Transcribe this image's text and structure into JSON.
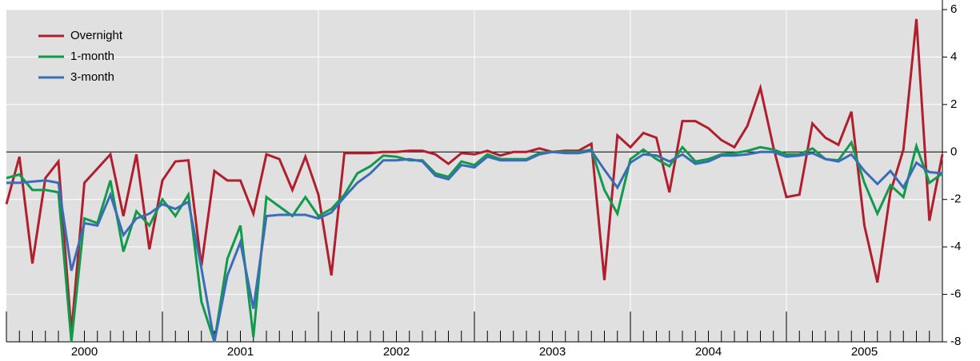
{
  "chart_data": {
    "type": "line",
    "categories": [
      null,
      null,
      null,
      null,
      null,
      null,
      "2000",
      null,
      null,
      null,
      null,
      null,
      null,
      null,
      null,
      null,
      null,
      null,
      "2001",
      null,
      null,
      null,
      null,
      null,
      null,
      null,
      null,
      null,
      null,
      null,
      "2002",
      null,
      null,
      null,
      null,
      null,
      null,
      null,
      null,
      null,
      null,
      null,
      "2003",
      null,
      null,
      null,
      null,
      null,
      null,
      null,
      null,
      null,
      null,
      null,
      "2004",
      null,
      null,
      null,
      null,
      null,
      null,
      null,
      null,
      null,
      null,
      null,
      "2005",
      null,
      null,
      null,
      null,
      null,
      null
    ],
    "series": [
      {
        "name": "Overnight",
        "color": "#b01f2e",
        "values": [
          -2.2,
          -0.2,
          -4.7,
          -1.1,
          -0.4,
          -7.6,
          -1.3,
          -0.7,
          -0.1,
          -2.7,
          -0.1,
          -4.1,
          -1.2,
          -0.4,
          -0.35,
          -4.8,
          -0.8,
          -1.2,
          -1.2,
          -2.6,
          -0.1,
          -0.3,
          -1.6,
          -0.2,
          -1.8,
          -5.2,
          -0.05,
          -0.05,
          -0.05,
          0,
          0,
          0.05,
          0.05,
          -0.1,
          -0.5,
          -0.05,
          -0.1,
          0.05,
          -0.15,
          0,
          0,
          0.15,
          0,
          0.05,
          0.05,
          0.35,
          -5.4,
          0.7,
          0.2,
          0.8,
          0.6,
          -1.7,
          1.3,
          1.3,
          1,
          0.5,
          0.2,
          1.1,
          2.7,
          0.2,
          -1.9,
          -1.8,
          1.2,
          0.6,
          0.3,
          1.7,
          -3.1,
          -5.5,
          -1.7,
          0.1,
          5.6,
          -2.9,
          -0.1
        ]
      },
      {
        "name": "1-month",
        "color": "#129a4c",
        "values": [
          -1.1,
          -0.95,
          -1.6,
          -1.6,
          -1.7,
          -8,
          -2.8,
          -3,
          -1.2,
          -4.2,
          -2.5,
          -3.1,
          -2,
          -2.7,
          -1.8,
          -6.3,
          -8,
          -4.5,
          -3.1,
          -7.8,
          -1.9,
          -2.3,
          -2.7,
          -1.9,
          -2.7,
          -2.4,
          -1.8,
          -0.9,
          -0.6,
          -0.15,
          -0.2,
          -0.35,
          -0.35,
          -0.9,
          -1.05,
          -0.4,
          -0.55,
          -0.1,
          -0.3,
          -0.3,
          -0.3,
          -0.05,
          0,
          0,
          0,
          0.1,
          -1.6,
          -2.6,
          -0.3,
          0.1,
          -0.3,
          -0.6,
          0.2,
          -0.4,
          -0.3,
          -0.1,
          -0.05,
          0.05,
          0.2,
          0.1,
          -0.1,
          -0.1,
          0.15,
          -0.3,
          -0.35,
          0.4,
          -1.3,
          -2.6,
          -1.4,
          -1.9,
          0.25,
          -1.3,
          -0.9
        ]
      },
      {
        "name": "3-month",
        "color": "#3b6db6",
        "values": [
          -1.3,
          -1.3,
          -1.25,
          -1.2,
          -1.3,
          -5,
          -3,
          -3.1,
          -1.8,
          -3.5,
          -2.8,
          -2.6,
          -2.2,
          -2.4,
          -2.1,
          -4.9,
          -8,
          -5.2,
          -3.8,
          -6.6,
          -2.7,
          -2.65,
          -2.65,
          -2.65,
          -2.8,
          -2.55,
          -1.9,
          -1.3,
          -0.9,
          -0.35,
          -0.35,
          -0.3,
          -0.4,
          -1,
          -1.15,
          -0.55,
          -0.65,
          -0.2,
          -0.35,
          -0.35,
          -0.35,
          -0.1,
          0,
          -0.05,
          -0.05,
          0.05,
          -0.75,
          -1.5,
          -0.45,
          -0.1,
          -0.15,
          -0.4,
          -0.1,
          -0.5,
          -0.4,
          -0.15,
          -0.15,
          -0.1,
          0,
          0,
          -0.2,
          -0.15,
          -0.05,
          -0.3,
          -0.4,
          -0.1,
          -0.8,
          -1.35,
          -0.8,
          -1.5,
          -0.45,
          -0.85,
          -0.9
        ]
      }
    ],
    "ylim": [
      -8,
      6
    ],
    "yticks": [
      -8,
      -6,
      -4,
      -2,
      0,
      2,
      4,
      6
    ],
    "grid": true,
    "legend": "upper left"
  }
}
